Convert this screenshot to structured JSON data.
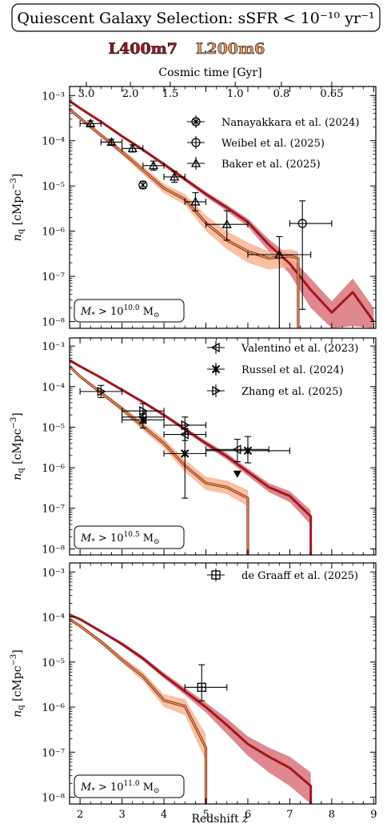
{
  "header": {
    "title": "Quiescent Galaxy Selection: sSFR < 10⁻¹⁰ yr⁻¹",
    "sim_labels": [
      {
        "text": "L400m7",
        "color": "#a01820"
      },
      {
        "text": "L200m6",
        "color": "#e8955e"
      }
    ]
  },
  "chart_data": {
    "type": "line",
    "colors": {
      "L400m7": "#a01820",
      "L400m7_band": "#d9737a",
      "L200m6": "#c05a2a",
      "L200m6_band": "#f8b08a"
    },
    "top_axis": {
      "label": "Cosmic time [Gyr]",
      "ticks": [
        "3.0",
        "2.0",
        "1.5",
        "1.0",
        "0.8",
        "0.65"
      ],
      "tick_values_gyr": [
        3.0,
        2.0,
        1.5,
        1.0,
        0.8,
        0.65
      ],
      "tick_z": [
        2.15,
        3.2,
        4.15,
        5.7,
        6.8,
        8.0
      ]
    },
    "x_axis": {
      "label": "Redshift z",
      "range": [
        1.75,
        9.05
      ],
      "ticks": [
        "2",
        "3",
        "4",
        "5",
        "6",
        "7",
        "8",
        "9"
      ]
    },
    "y_axis": {
      "label": "nq [cMpc⁻³]",
      "scale": "log"
    },
    "panels": [
      {
        "mass_label": "M* > 10^10.0 M⊙",
        "mass_exponent": "10.0",
        "ylim_log10": [
          -8.15,
          -2.8
        ],
        "yticks": [
          "10⁻³",
          "10⁻⁴",
          "10⁻⁵",
          "10⁻⁶",
          "10⁻⁷",
          "10⁻⁸"
        ],
        "ytick_values_log10": [
          -3,
          -4,
          -5,
          -6,
          -7,
          -8
        ],
        "series": [
          {
            "name": "L400m7",
            "z": [
              1.75,
              2,
              2.5,
              3,
              3.5,
              4,
              4.5,
              5,
              5.5,
              6,
              6.5,
              7,
              7.5,
              8,
              8.5,
              9
            ],
            "log_n": [
              -3.12,
              -3.28,
              -3.58,
              -3.9,
              -4.2,
              -4.52,
              -4.85,
              -5.18,
              -5.48,
              -5.8,
              -6.3,
              -6.72,
              -7.3,
              -7.8,
              -7.35,
              -8.0
            ],
            "band_lo": [
              -3.15,
              -3.31,
              -3.61,
              -3.93,
              -4.24,
              -4.56,
              -4.9,
              -5.24,
              -5.56,
              -5.9,
              -6.45,
              -6.95,
              -7.7,
              -8.15,
              -8.1,
              -8.15
            ],
            "band_hi": [
              -3.09,
              -3.25,
              -3.55,
              -3.87,
              -4.17,
              -4.48,
              -4.81,
              -5.13,
              -5.42,
              -5.72,
              -6.18,
              -6.55,
              -7.05,
              -7.55,
              -7.05,
              -7.7
            ]
          },
          {
            "name": "L200m6",
            "z": [
              1.75,
              2,
              2.5,
              3,
              3.5,
              4,
              4.5,
              5,
              5.5,
              6,
              6.5,
              7,
              7.2,
              7.2
            ],
            "log_n": [
              -3.3,
              -3.5,
              -3.88,
              -4.25,
              -4.65,
              -5.05,
              -5.3,
              -5.82,
              -6.2,
              -6.45,
              -6.6,
              -6.55,
              -6.6,
              -8.15
            ],
            "band_lo": [
              -3.33,
              -3.54,
              -3.93,
              -4.32,
              -4.74,
              -5.16,
              -5.42,
              -6.0,
              -6.4,
              -6.7,
              -6.85,
              -6.8,
              -6.85,
              -8.15
            ],
            "band_hi": [
              -3.27,
              -3.46,
              -3.83,
              -4.18,
              -4.56,
              -4.95,
              -5.18,
              -5.65,
              -6.0,
              -6.25,
              -6.45,
              -6.4,
              -6.45,
              -8.15
            ]
          }
        ],
        "observations": [
          {
            "name": "Nanayakkara et al. (2024)",
            "marker": "circle-x",
            "points": [
              {
                "z": 3.5,
                "log_n": -4.98,
                "xerr": 0.0,
                "yerr_lo": 0.08,
                "yerr_hi": 0.08
              }
            ]
          },
          {
            "name": "Weibel et al. (2025)",
            "marker": "circle",
            "points": [
              {
                "z": 7.3,
                "log_n": -5.83,
                "xerr_lo": 0.3,
                "xerr_hi": 0.7,
                "yerr_lo": 1.9,
                "yerr_hi": 0.5
              }
            ]
          },
          {
            "name": "Baker et al. (2025)",
            "marker": "triangle-up",
            "points": [
              {
                "z": 2.25,
                "log_n": -3.62,
                "xerr": 0.25,
                "yerr_lo": 0.06,
                "yerr_hi": 0.06
              },
              {
                "z": 2.75,
                "log_n": -4.03,
                "xerr": 0.25,
                "yerr_lo": 0.06,
                "yerr_hi": 0.06
              },
              {
                "z": 3.25,
                "log_n": -4.17,
                "xerr": 0.25,
                "yerr_lo": 0.08,
                "yerr_hi": 0.08
              },
              {
                "z": 3.75,
                "log_n": -4.55,
                "xerr": 0.25,
                "yerr_lo": 0.1,
                "yerr_hi": 0.1
              },
              {
                "z": 4.25,
                "log_n": -4.8,
                "xerr": 0.25,
                "yerr_lo": 0.12,
                "yerr_hi": 0.12
              },
              {
                "z": 4.75,
                "log_n": -5.35,
                "xerr": 0.25,
                "yerr_lo": 0.2,
                "yerr_hi": 0.2
              },
              {
                "z": 5.5,
                "log_n": -5.85,
                "xerr": 0.5,
                "yerr_lo": 0.35,
                "yerr_hi": 0.3
              },
              {
                "z": 6.75,
                "log_n": -6.52,
                "xerr": 0.75,
                "yerr_lo": 1.8,
                "yerr_hi": 0.4
              }
            ]
          }
        ]
      },
      {
        "mass_label": "M* > 10^10.5 M⊙",
        "mass_exponent": "10.5",
        "ylim_log10": [
          -8.15,
          -2.8
        ],
        "yticks": [
          "10⁻³",
          "10⁻⁴",
          "10⁻⁵",
          "10⁻⁶",
          "10⁻⁷",
          "10⁻⁸"
        ],
        "ytick_values_log10": [
          -3,
          -4,
          -5,
          -6,
          -7,
          -8
        ],
        "series": [
          {
            "name": "L400m7",
            "z": [
              1.75,
              2,
              2.5,
              3,
              3.5,
              4,
              4.5,
              5,
              5.5,
              6,
              6.5,
              7,
              7.5,
              7.5
            ],
            "log_n": [
              -3.35,
              -3.5,
              -3.78,
              -4.08,
              -4.38,
              -4.7,
              -5.05,
              -5.4,
              -5.72,
              -6.1,
              -6.48,
              -6.7,
              -7.2,
              -8.15
            ],
            "band_lo": [
              -3.38,
              -3.53,
              -3.81,
              -4.11,
              -4.42,
              -4.74,
              -5.1,
              -5.46,
              -5.8,
              -6.2,
              -6.6,
              -6.85,
              -7.4,
              -8.15
            ],
            "band_hi": [
              -3.32,
              -3.47,
              -3.75,
              -4.05,
              -4.35,
              -4.66,
              -5.0,
              -5.34,
              -5.64,
              -6.02,
              -6.38,
              -6.58,
              -7.05,
              -8.15
            ]
          },
          {
            "name": "L200m6",
            "z": [
              1.75,
              2,
              2.5,
              3,
              3.5,
              4,
              4.5,
              5,
              5.5,
              6,
              6,
              6
            ],
            "log_n": [
              -3.5,
              -3.75,
              -4.15,
              -4.55,
              -4.98,
              -5.4,
              -5.95,
              -6.38,
              -6.48,
              -6.75,
              -6.75,
              -8.15
            ],
            "band_lo": [
              -3.53,
              -3.79,
              -4.2,
              -4.62,
              -5.08,
              -5.52,
              -6.1,
              -6.55,
              -6.65,
              -6.95,
              -6.95,
              -8.15
            ],
            "band_hi": [
              -3.47,
              -3.71,
              -4.1,
              -4.48,
              -4.88,
              -5.28,
              -5.8,
              -6.22,
              -6.32,
              -6.55,
              -6.55,
              -8.15
            ]
          }
        ],
        "observations": [
          {
            "name": "Valentino et al. (2023)",
            "marker": "triangle-left",
            "points": [
              {
                "z": 3.5,
                "log_n": -4.75,
                "xerr": 0.5,
                "yerr_lo": 0.15,
                "yerr_hi": 0.15
              },
              {
                "z": 4.5,
                "log_n": -5.18,
                "xerr": 0.5,
                "yerr_lo": 0.15,
                "yerr_hi": 0.15
              },
              {
                "z": 5.75,
                "log_n": -5.55,
                "xerr": 0.75,
                "yerr_lo": 0.3,
                "yerr_hi": 0.25
              }
            ]
          },
          {
            "name": "Russel et al. (2024)",
            "marker": "x",
            "points": [
              {
                "z": 3.5,
                "log_n": -4.82,
                "xerr": 0.5,
                "yerr_lo": 0.2,
                "yerr_hi": 0.15
              },
              {
                "z": 4.5,
                "log_n": -5.65,
                "xerr": 0.5,
                "yerr_lo": 1.1,
                "yerr_hi": 0.6
              },
              {
                "z": 6.0,
                "log_n": -5.58,
                "xerr": 1.0,
                "yerr_lo": 0.3,
                "yerr_hi": 0.35
              }
            ]
          },
          {
            "name": "Zhang et al. (2025)",
            "marker": "triangle-right",
            "points": [
              {
                "z": 2.5,
                "log_n": -4.12,
                "xerr": 0.5,
                "yerr_lo": 0.15,
                "yerr_hi": 0.15
              },
              {
                "z": 3.5,
                "log_n": -4.6,
                "xerr": 0.5,
                "yerr_lo": 0.18,
                "yerr_hi": 0.18
              },
              {
                "z": 4.5,
                "log_n": -4.95,
                "xerr": 0.5,
                "yerr_lo": 0.2,
                "yerr_hi": 0.2
              }
            ]
          },
          {
            "name": "upper limit",
            "marker": "triangle-down",
            "points": [
              {
                "z": 5.75,
                "log_n": -6.15
              }
            ]
          }
        ]
      },
      {
        "mass_label": "M* > 10^11.0 M⊙",
        "mass_exponent": "11.0",
        "ylim_log10": [
          -8.15,
          -2.8
        ],
        "yticks": [
          "10⁻³",
          "10⁻⁴",
          "10⁻⁵",
          "10⁻⁶",
          "10⁻⁷",
          "10⁻⁸"
        ],
        "ytick_values_log10": [
          -3,
          -4,
          -5,
          -6,
          -7,
          -8
        ],
        "series": [
          {
            "name": "L400m7",
            "z": [
              1.75,
              2,
              2.5,
              3,
              3.5,
              4,
              4.5,
              5,
              5.5,
              6,
              6.5,
              7,
              7.5,
              7.5
            ],
            "log_n": [
              -3.95,
              -4.05,
              -4.32,
              -4.6,
              -4.92,
              -5.3,
              -5.65,
              -6.0,
              -6.4,
              -6.82,
              -7.1,
              -7.35,
              -7.75,
              -8.15
            ],
            "band_lo": [
              -3.98,
              -4.08,
              -4.35,
              -4.64,
              -4.97,
              -5.36,
              -5.73,
              -6.12,
              -6.6,
              -7.08,
              -7.45,
              -7.75,
              -8.15,
              -8.15
            ],
            "band_hi": [
              -3.92,
              -4.02,
              -4.29,
              -4.56,
              -4.87,
              -5.24,
              -5.57,
              -5.9,
              -6.25,
              -6.65,
              -6.9,
              -7.1,
              -7.45,
              -8.15
            ]
          },
          {
            "name": "L200m6",
            "z": [
              1.75,
              2,
              2.5,
              3,
              3.5,
              4,
              4.5,
              5,
              5
            ],
            "log_n": [
              -4.05,
              -4.2,
              -4.55,
              -4.95,
              -5.32,
              -5.85,
              -5.98,
              -6.9,
              -8.15
            ],
            "band_lo": [
              -4.08,
              -4.24,
              -4.6,
              -5.02,
              -5.42,
              -6.0,
              -6.18,
              -7.2,
              -8.15
            ],
            "band_hi": [
              -4.02,
              -4.16,
              -4.5,
              -4.88,
              -5.22,
              -5.72,
              -5.82,
              -6.6,
              -8.15
            ]
          }
        ],
        "observations": [
          {
            "name": "de Graaff et al. (2025)",
            "marker": "square-plus",
            "points": [
              {
                "z": 4.9,
                "log_n": -5.56,
                "xerr_lo": 0.4,
                "xerr_hi": 0.6,
                "yerr_lo": 0.3,
                "yerr_hi": 0.5
              }
            ]
          }
        ]
      }
    ]
  }
}
